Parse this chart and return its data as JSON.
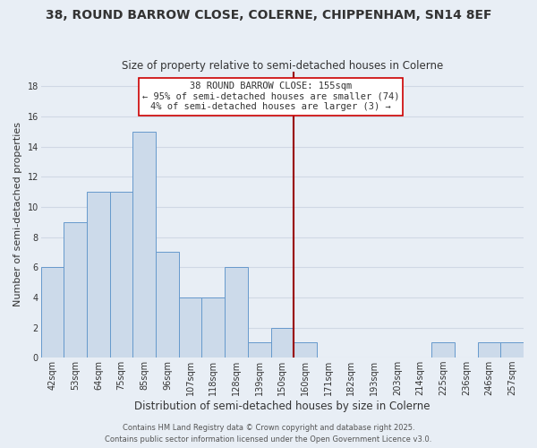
{
  "title1": "38, ROUND BARROW CLOSE, COLERNE, CHIPPENHAM, SN14 8EF",
  "title2": "Size of property relative to semi-detached houses in Colerne",
  "xlabel": "Distribution of semi-detached houses by size in Colerne",
  "ylabel": "Number of semi-detached properties",
  "bin_labels": [
    "42sqm",
    "53sqm",
    "64sqm",
    "75sqm",
    "85sqm",
    "96sqm",
    "107sqm",
    "118sqm",
    "128sqm",
    "139sqm",
    "150sqm",
    "160sqm",
    "171sqm",
    "182sqm",
    "193sqm",
    "203sqm",
    "214sqm",
    "225sqm",
    "236sqm",
    "246sqm",
    "257sqm"
  ],
  "bar_values": [
    6,
    9,
    11,
    11,
    15,
    7,
    4,
    4,
    6,
    1,
    2,
    1,
    0,
    0,
    0,
    0,
    0,
    1,
    0,
    1,
    1
  ],
  "bar_color": "#ccdaea",
  "bar_edge_color": "#6699cc",
  "background_color": "#e8eef5",
  "grid_color": "#d0d8e4",
  "vline_x_index": 10.5,
  "vline_color": "#990000",
  "annotation_title": "38 ROUND BARROW CLOSE: 155sqm",
  "annotation_line1": "← 95% of semi-detached houses are smaller (74)",
  "annotation_line2": "4% of semi-detached houses are larger (3) →",
  "annotation_box_color": "#ffffff",
  "annotation_box_edge": "#cc0000",
  "footer1": "Contains HM Land Registry data © Crown copyright and database right 2025.",
  "footer2": "Contains public sector information licensed under the Open Government Licence v3.0.",
  "ylim": [
    0,
    19
  ],
  "yticks": [
    0,
    2,
    4,
    6,
    8,
    10,
    12,
    14,
    16,
    18
  ],
  "title1_fontsize": 10,
  "title2_fontsize": 8.5,
  "xlabel_fontsize": 8.5,
  "ylabel_fontsize": 8,
  "tick_fontsize": 7,
  "annotation_fontsize": 7.5,
  "footer_fontsize": 6
}
